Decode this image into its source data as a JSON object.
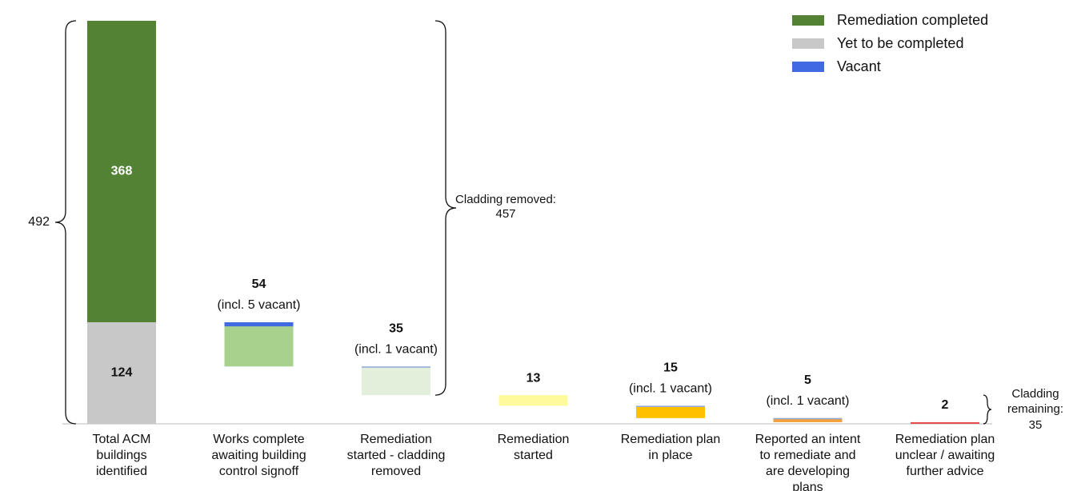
{
  "chart_data": {
    "type": "waterfall",
    "categories": [
      [
        "Total ACM",
        "buildings",
        "identified"
      ],
      [
        "Works complete",
        "awaiting building",
        "control signoff"
      ],
      [
        "Remediation",
        "started - cladding",
        "removed"
      ],
      [
        "Remediation",
        "started"
      ],
      [
        "Remediation plan",
        "in place"
      ],
      [
        "Reported an intent",
        "to remediate and",
        "are developing",
        "plans"
      ],
      [
        "Remediation plan",
        "unclear / awaiting",
        "further advice"
      ]
    ],
    "series": [
      {
        "name": "Remediation completed",
        "color": "#548235"
      },
      {
        "name": "Yet to be completed",
        "color": "#c8c8c8"
      },
      {
        "name": "Vacant",
        "color": "#4169e1"
      }
    ],
    "completed": 368,
    "remaining": 124,
    "total": 492,
    "steps": {
      "values": [
        54,
        35,
        13,
        15,
        5,
        2
      ],
      "vacant": [
        5,
        1,
        null,
        1,
        1,
        null
      ],
      "vacant_labels": [
        "(incl. 5 vacant)",
        "(incl. 1 vacant)",
        null,
        "(incl. 1 vacant)",
        "(incl. 1 vacant)",
        null
      ],
      "colors": [
        "#a9d18e",
        "#e2efda",
        "#fffa9c",
        "#ffc000",
        "#f4a13a",
        "#e84b4b"
      ],
      "vacant_colors": [
        "#4169e1",
        "#8faadc",
        null,
        "#8faadc",
        "#8faadc",
        null
      ]
    },
    "cladding_removed": {
      "label": "Cladding removed:",
      "value": 457
    },
    "cladding_remaining": {
      "label": [
        "Cladding",
        "remaining:"
      ],
      "value": 35
    }
  }
}
